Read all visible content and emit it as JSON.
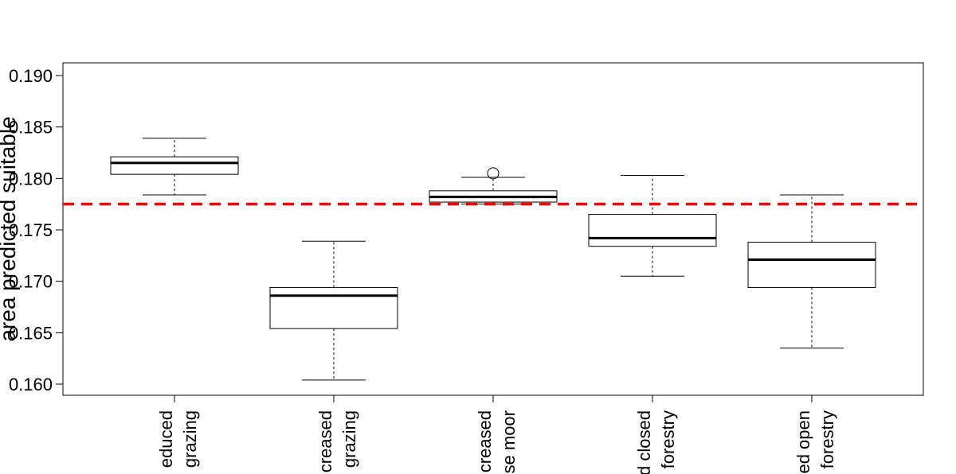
{
  "chart_data": {
    "type": "box",
    "ylabel": "area predicted suitable",
    "ylim": [
      0.159,
      0.191
    ],
    "yticks": [
      "0.160",
      "0.165",
      "0.170",
      "0.175",
      "0.180",
      "0.185",
      "0.190"
    ],
    "yticks_values": [
      0.16,
      0.165,
      0.17,
      0.175,
      0.18,
      0.185,
      0.19
    ],
    "reference_line": {
      "value": 0.1775,
      "color": "#ff0000",
      "style": "dashed"
    },
    "grid": false,
    "categories": [
      {
        "lines": [
          "educed",
          "grazing"
        ]
      },
      {
        "lines": [
          "creased",
          "grazing"
        ]
      },
      {
        "lines": [
          "creased",
          "se moor"
        ]
      },
      {
        "lines": [
          "d closed",
          "forestry"
        ]
      },
      {
        "lines": [
          "ed open",
          "forestry"
        ]
      }
    ],
    "boxes": [
      {
        "whisker_low": 0.1784,
        "q1": 0.1804,
        "median": 0.1815,
        "q3": 0.1821,
        "whisker_high": 0.1839,
        "outliers": []
      },
      {
        "whisker_low": 0.1604,
        "q1": 0.1654,
        "median": 0.1686,
        "q3": 0.1694,
        "whisker_high": 0.1739,
        "outliers": []
      },
      {
        "whisker_low": 0.1775,
        "q1": 0.1777,
        "median": 0.1782,
        "q3": 0.1788,
        "whisker_high": 0.1801,
        "outliers": [
          0.1805
        ]
      },
      {
        "whisker_low": 0.1705,
        "q1": 0.1734,
        "median": 0.1742,
        "q3": 0.1765,
        "whisker_high": 0.1803,
        "outliers": []
      },
      {
        "whisker_low": 0.1635,
        "q1": 0.1694,
        "median": 0.1721,
        "q3": 0.1738,
        "whisker_high": 0.1784,
        "outliers": []
      }
    ]
  }
}
